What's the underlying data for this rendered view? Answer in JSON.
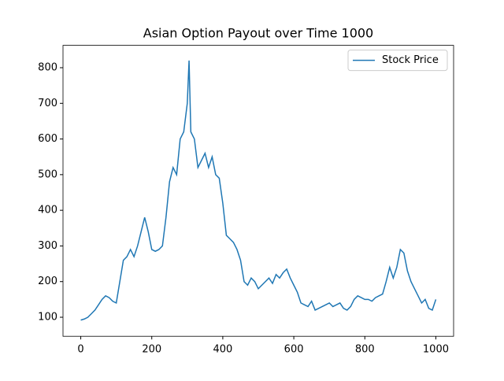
{
  "chart_data": {
    "type": "line",
    "title": "Asian Option Payout over Time 1000",
    "x": [
      0,
      10,
      20,
      30,
      40,
      50,
      60,
      70,
      80,
      90,
      100,
      110,
      120,
      130,
      140,
      150,
      160,
      170,
      180,
      190,
      200,
      210,
      220,
      230,
      240,
      250,
      260,
      270,
      280,
      290,
      300,
      305,
      310,
      320,
      330,
      340,
      350,
      360,
      370,
      380,
      390,
      400,
      410,
      420,
      430,
      440,
      450,
      460,
      470,
      480,
      490,
      500,
      510,
      520,
      530,
      540,
      550,
      560,
      570,
      580,
      590,
      600,
      610,
      620,
      630,
      640,
      650,
      660,
      670,
      680,
      690,
      700,
      710,
      720,
      730,
      740,
      750,
      760,
      770,
      780,
      790,
      800,
      810,
      820,
      830,
      840,
      850,
      860,
      870,
      880,
      890,
      900,
      910,
      920,
      930,
      940,
      950,
      960,
      970,
      980,
      990,
      1000
    ],
    "series": [
      {
        "name": "Stock Price",
        "color": "#1f77b4",
        "values": [
          92,
          95,
          100,
          110,
          120,
          135,
          150,
          160,
          155,
          145,
          140,
          200,
          260,
          270,
          290,
          270,
          300,
          340,
          380,
          340,
          290,
          285,
          290,
          300,
          380,
          480,
          520,
          500,
          600,
          620,
          700,
          820,
          620,
          600,
          520,
          540,
          560,
          520,
          550,
          500,
          490,
          420,
          330,
          320,
          310,
          290,
          260,
          200,
          190,
          210,
          200,
          180,
          190,
          200,
          210,
          195,
          220,
          210,
          225,
          235,
          210,
          190,
          170,
          140,
          135,
          130,
          145,
          120,
          125,
          130,
          135,
          140,
          130,
          135,
          140,
          125,
          120,
          130,
          150,
          160,
          155,
          150,
          150,
          145,
          155,
          160,
          165,
          200,
          240,
          210,
          240,
          290,
          280,
          230,
          200,
          180,
          160,
          140,
          150,
          125,
          120,
          150
        ]
      }
    ],
    "xlim": [
      -50,
      1050
    ],
    "xticks": [
      0,
      200,
      400,
      600,
      800,
      1000
    ],
    "ylim": [
      46.6,
      862.7
    ],
    "yticks": [
      100,
      200,
      300,
      400,
      500,
      600,
      700,
      800
    ],
    "legend": "upper right"
  }
}
